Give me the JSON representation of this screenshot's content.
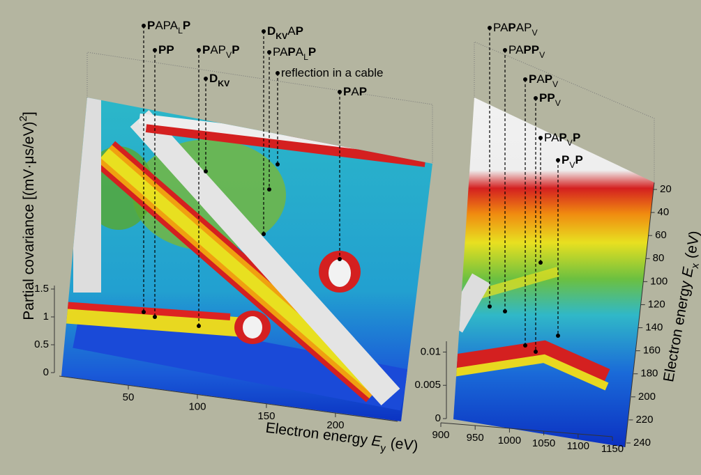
{
  "left_panel": {
    "z_label": [
      {
        "text": "Partial covariance [(mV·μs/eV)"
      },
      {
        "text": "2",
        "sup": true
      },
      {
        "text": "]"
      }
    ],
    "zlim": [
      0,
      1.5
    ],
    "zticks": [
      0,
      0.5,
      1,
      1.5
    ],
    "x_label": [
      {
        "text": "Electron energy "
      },
      {
        "text": "E",
        "italic": true
      },
      {
        "text": "y",
        "sub": true
      },
      {
        "text": " (eV)"
      }
    ],
    "xlim": [
      0,
      245
    ],
    "xticks": [
      50,
      100,
      150,
      200
    ],
    "annotations": [
      [
        {
          "text": "P",
          "bold": true
        },
        {
          "text": "APA"
        },
        {
          "text": "L",
          "sub": true
        },
        {
          "text": "P",
          "bold": true
        }
      ],
      [
        {
          "text": "PP",
          "bold": true
        }
      ],
      [
        {
          "text": "P",
          "bold": true
        },
        {
          "text": "AP"
        },
        {
          "text": "V",
          "sub": true
        },
        {
          "text": "P",
          "bold": true
        }
      ],
      [
        {
          "text": "D",
          "bold": true
        },
        {
          "text": "KV",
          "sub": true,
          "bold": true
        }
      ],
      [
        {
          "text": "D",
          "bold": true
        },
        {
          "text": "KV",
          "sub": true,
          "bold": true
        },
        {
          "text": "A"
        },
        {
          "text": "P",
          "bold": true
        }
      ],
      [
        {
          "text": "PA"
        },
        {
          "text": "P",
          "bold": true
        },
        {
          "text": "A"
        },
        {
          "text": "L",
          "sub": true
        },
        {
          "text": "P",
          "bold": true
        }
      ],
      [
        {
          "text": "reflection in a cable"
        }
      ],
      [
        {
          "text": "P",
          "bold": true
        },
        {
          "text": "A"
        },
        {
          "text": "P",
          "bold": true
        }
      ]
    ]
  },
  "right_panel": {
    "zlim": [
      0,
      0.0135
    ],
    "zticks": [
      0,
      0.005,
      0.01
    ],
    "xlim": [
      900,
      1150
    ],
    "xticks": [
      900,
      950,
      1000,
      1050,
      1100,
      1150
    ],
    "y_label": [
      {
        "text": "Electron energy "
      },
      {
        "text": "E",
        "italic": true
      },
      {
        "text": "x",
        "sub": true
      },
      {
        "text": " (eV)"
      }
    ],
    "ylim": [
      20,
      240
    ],
    "yticks": [
      20,
      40,
      60,
      80,
      100,
      120,
      140,
      160,
      180,
      200,
      220,
      240
    ],
    "annotations": [
      [
        {
          "text": "PA"
        },
        {
          "text": "P",
          "bold": true
        },
        {
          "text": "AP"
        },
        {
          "text": "V",
          "sub": true
        }
      ],
      [
        {
          "text": "PA"
        },
        {
          "text": "PP",
          "bold": true
        },
        {
          "text": "V",
          "sub": true
        }
      ],
      [
        {
          "text": "P",
          "bold": true
        },
        {
          "text": "A"
        },
        {
          "text": "P",
          "bold": true
        },
        {
          "text": "V",
          "sub": true
        }
      ],
      [
        {
          "text": "PP",
          "bold": true
        },
        {
          "text": "V",
          "sub": true
        }
      ],
      [
        {
          "text": "PA"
        },
        {
          "text": "P",
          "bold": true
        },
        {
          "text": "V",
          "sub": true
        },
        {
          "text": "P",
          "bold": true
        }
      ],
      [
        {
          "text": "P",
          "bold": true
        },
        {
          "text": "V",
          "sub": true
        },
        {
          "text": "P",
          "bold": true
        }
      ]
    ]
  }
}
